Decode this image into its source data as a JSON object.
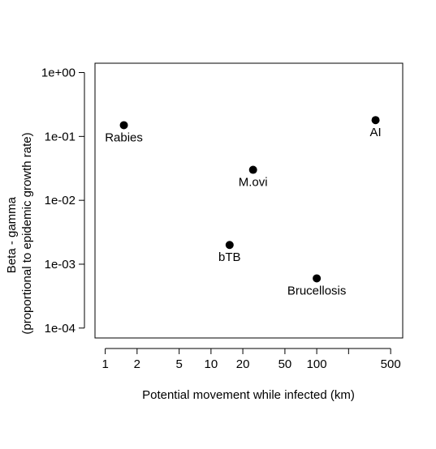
{
  "chart_data": {
    "type": "scatter",
    "title": "",
    "xlabel": "Potential movement while infected (km)",
    "ylabel_line1": "Beta - gamma",
    "ylabel_line2": "(proportional to epidemic growth rate)",
    "x_scale": "log",
    "y_scale": "log",
    "xlim": [
      0.8,
      650
    ],
    "ylim": [
      7e-05,
      1.4
    ],
    "x_ticks": [
      1,
      2,
      5,
      10,
      20,
      50,
      100,
      200,
      500
    ],
    "x_tick_labels": [
      "1",
      "2",
      "5",
      "10",
      "20",
      "50",
      "100",
      "",
      "500"
    ],
    "y_ticks": [
      0.0001,
      0.001,
      0.01,
      0.1,
      1
    ],
    "y_tick_labels": [
      "1e-04",
      "1e-03",
      "1e-02",
      "1e-01",
      "1e+00"
    ],
    "grid": false,
    "legend": "none",
    "marker_color": "#000000",
    "points": [
      {
        "label": "Rabies",
        "x": 1.5,
        "y": 0.15
      },
      {
        "label": "AI",
        "x": 360,
        "y": 0.18
      },
      {
        "label": "M.ovi",
        "x": 25,
        "y": 0.03
      },
      {
        "label": "bTB",
        "x": 15,
        "y": 0.002
      },
      {
        "label": "Brucellosis",
        "x": 100,
        "y": 0.0006
      }
    ]
  }
}
